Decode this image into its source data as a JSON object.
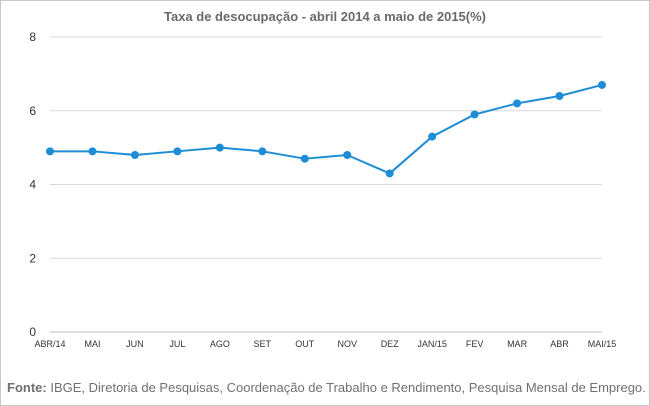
{
  "chart_data": {
    "type": "line",
    "title": "Taxa de desocupação - abril 2014 a maio de 2015(%)",
    "categories": [
      "ABR/14",
      "MAI",
      "JUN",
      "JUL",
      "AGO",
      "SET",
      "OUT",
      "NOV",
      "DEZ",
      "JAN/15",
      "FEV",
      "MAR",
      "ABR",
      "MAI/15"
    ],
    "series": [
      {
        "values": [
          4.9,
          4.9,
          4.8,
          4.9,
          5.0,
          4.9,
          4.7,
          4.8,
          4.3,
          5.3,
          5.9,
          6.2,
          6.4,
          6.7
        ]
      }
    ],
    "yticks": [
      0,
      2,
      4,
      6,
      8
    ],
    "ylim": [
      0,
      8
    ],
    "xlabel": "",
    "ylabel": "",
    "grid": true,
    "line_color": "#1f8dd6",
    "grid_color": "#d9d9d9"
  },
  "source": {
    "label": "Fonte:",
    "text": " IBGE, Diretoria de Pesquisas, Coordenação de Trabalho e Rendimento, Pesquisa Mensal de Emprego."
  }
}
